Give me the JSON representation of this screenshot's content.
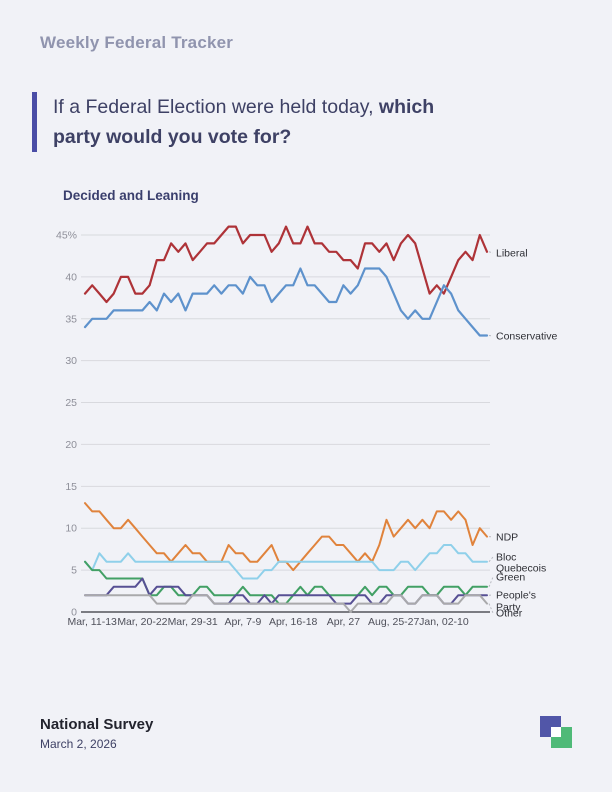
{
  "header": {
    "tracker_label": "Weekly Federal Tracker"
  },
  "headline": {
    "lead": "If a Federal Election were held today, ",
    "bold_line1": "which",
    "bold_line2": "party would you vote for?"
  },
  "section": {
    "label": "Decided and Leaning"
  },
  "footer": {
    "title": "National Survey",
    "date": "March 2, 2026"
  },
  "colors": {
    "background": "#f1f2f7",
    "accent_bar": "#4a4da6",
    "grid_line": "#d8d9de",
    "axis_line": "#35363c",
    "y_tick_text": "#8e8f99",
    "x_tick_text": "#4f505a",
    "series_label_text": "#2e2f35",
    "logo_purple": "#5156a8",
    "logo_green": "#4fba78"
  },
  "chart_data": {
    "type": "line",
    "title": "Decided and Leaning",
    "xlabel": "",
    "ylabel": "",
    "ylim": [
      0,
      47
    ],
    "grid": true,
    "legend_position": "right-of-line-end",
    "y_ticks": [
      {
        "v": 45,
        "label": "45%"
      },
      {
        "v": 40,
        "label": "40"
      },
      {
        "v": 35,
        "label": "35"
      },
      {
        "v": 30,
        "label": "30"
      },
      {
        "v": 25,
        "label": "25"
      },
      {
        "v": 20,
        "label": "20"
      },
      {
        "v": 15,
        "label": "15"
      },
      {
        "v": 10,
        "label": "10"
      },
      {
        "v": 5,
        "label": "5"
      },
      {
        "v": 0,
        "label": "0"
      }
    ],
    "x_tick_labels": [
      "Mar, 11-13",
      "Mar, 20-22",
      "Mar, 29-31",
      "Apr, 7-9",
      "Apr, 16-18",
      "Apr, 27",
      "Aug, 25-27",
      "Jan, 02-10"
    ],
    "x_tick_indices": [
      1,
      8,
      15,
      22,
      29,
      36,
      43,
      50
    ],
    "series": [
      {
        "name": "Liberal",
        "label_lines": [
          "Liberal"
        ],
        "color": "#ae3338",
        "values": [
          38,
          39,
          38,
          37,
          38,
          40,
          40,
          38,
          38,
          39,
          42,
          42,
          44,
          43,
          44,
          42,
          43,
          44,
          44,
          45,
          46,
          46,
          44,
          45,
          45,
          45,
          43,
          44,
          46,
          44,
          44,
          46,
          44,
          44,
          43,
          43,
          42,
          42,
          41,
          44,
          44,
          43,
          44,
          42,
          44,
          45,
          44,
          41,
          38,
          39,
          38,
          40,
          42,
          43,
          42,
          45,
          43
        ]
      },
      {
        "name": "Conservative",
        "label_lines": [
          "Conservative"
        ],
        "color": "#5e92cc",
        "values": [
          34,
          35,
          35,
          35,
          36,
          36,
          36,
          36,
          36,
          37,
          36,
          38,
          37,
          38,
          36,
          38,
          38,
          38,
          39,
          38,
          39,
          39,
          38,
          40,
          39,
          39,
          37,
          38,
          39,
          39,
          41,
          39,
          39,
          38,
          37,
          37,
          39,
          38,
          39,
          41,
          41,
          41,
          40,
          38,
          36,
          35,
          36,
          35,
          35,
          37,
          39,
          38,
          36,
          35,
          34,
          33,
          33
        ]
      },
      {
        "name": "NDP",
        "label_lines": [
          "NDP"
        ],
        "color": "#e0833c",
        "values": [
          13,
          12,
          12,
          11,
          10,
          10,
          11,
          10,
          9,
          8,
          7,
          7,
          6,
          7,
          8,
          7,
          7,
          6,
          6,
          6,
          8,
          7,
          7,
          6,
          6,
          7,
          8,
          6,
          6,
          5,
          6,
          7,
          8,
          9,
          9,
          8,
          8,
          7,
          6,
          7,
          6,
          8,
          11,
          9,
          10,
          11,
          10,
          11,
          10,
          12,
          12,
          11,
          12,
          11,
          8,
          10,
          9
        ]
      },
      {
        "name": "Bloc Quebecois",
        "label_lines": [
          "Bloc",
          "Quebecois"
        ],
        "color": "#8fd0ea",
        "values": [
          6,
          5,
          7,
          6,
          6,
          6,
          7,
          6,
          6,
          6,
          6,
          6,
          6,
          6,
          6,
          6,
          6,
          6,
          6,
          6,
          6,
          5,
          4,
          4,
          4,
          5,
          5,
          6,
          6,
          6,
          6,
          6,
          6,
          6,
          6,
          6,
          6,
          6,
          6,
          6,
          6,
          5,
          5,
          5,
          6,
          6,
          5,
          6,
          7,
          7,
          8,
          8,
          7,
          7,
          6,
          6,
          6
        ]
      },
      {
        "name": "Green",
        "label_lines": [
          "Green"
        ],
        "color": "#42a065",
        "values": [
          6,
          5,
          5,
          4,
          4,
          4,
          4,
          4,
          4,
          2,
          2,
          3,
          3,
          2,
          2,
          2,
          3,
          3,
          2,
          2,
          2,
          2,
          3,
          2,
          2,
          2,
          2,
          1,
          1,
          2,
          3,
          2,
          3,
          3,
          2,
          2,
          2,
          2,
          2,
          3,
          2,
          3,
          3,
          2,
          2,
          3,
          3,
          3,
          2,
          2,
          3,
          3,
          3,
          2,
          3,
          3,
          3
        ]
      },
      {
        "name": "People's Party",
        "label_lines": [
          "People's",
          "Party"
        ],
        "color": "#575094",
        "values": [
          2,
          2,
          2,
          2,
          3,
          3,
          3,
          3,
          4,
          2,
          3,
          3,
          3,
          3,
          2,
          2,
          2,
          2,
          1,
          1,
          1,
          2,
          2,
          1,
          1,
          2,
          1,
          2,
          2,
          2,
          2,
          2,
          2,
          2,
          2,
          1,
          1,
          1,
          2,
          2,
          1,
          1,
          2,
          2,
          2,
          1,
          1,
          2,
          2,
          2,
          1,
          1,
          2,
          2,
          2,
          2,
          2
        ]
      },
      {
        "name": "Other",
        "label_lines": [
          "Other"
        ],
        "color": "#a9a9ab",
        "values": [
          2,
          2,
          2,
          2,
          2,
          2,
          2,
          2,
          2,
          2,
          1,
          1,
          1,
          1,
          1,
          2,
          2,
          2,
          1,
          1,
          1,
          1,
          1,
          1,
          1,
          1,
          1,
          1,
          1,
          1,
          1,
          1,
          1,
          1,
          1,
          1,
          1,
          0,
          1,
          1,
          1,
          1,
          1,
          2,
          2,
          1,
          1,
          2,
          2,
          2,
          1,
          1,
          1,
          2,
          2,
          2,
          1
        ]
      }
    ]
  }
}
